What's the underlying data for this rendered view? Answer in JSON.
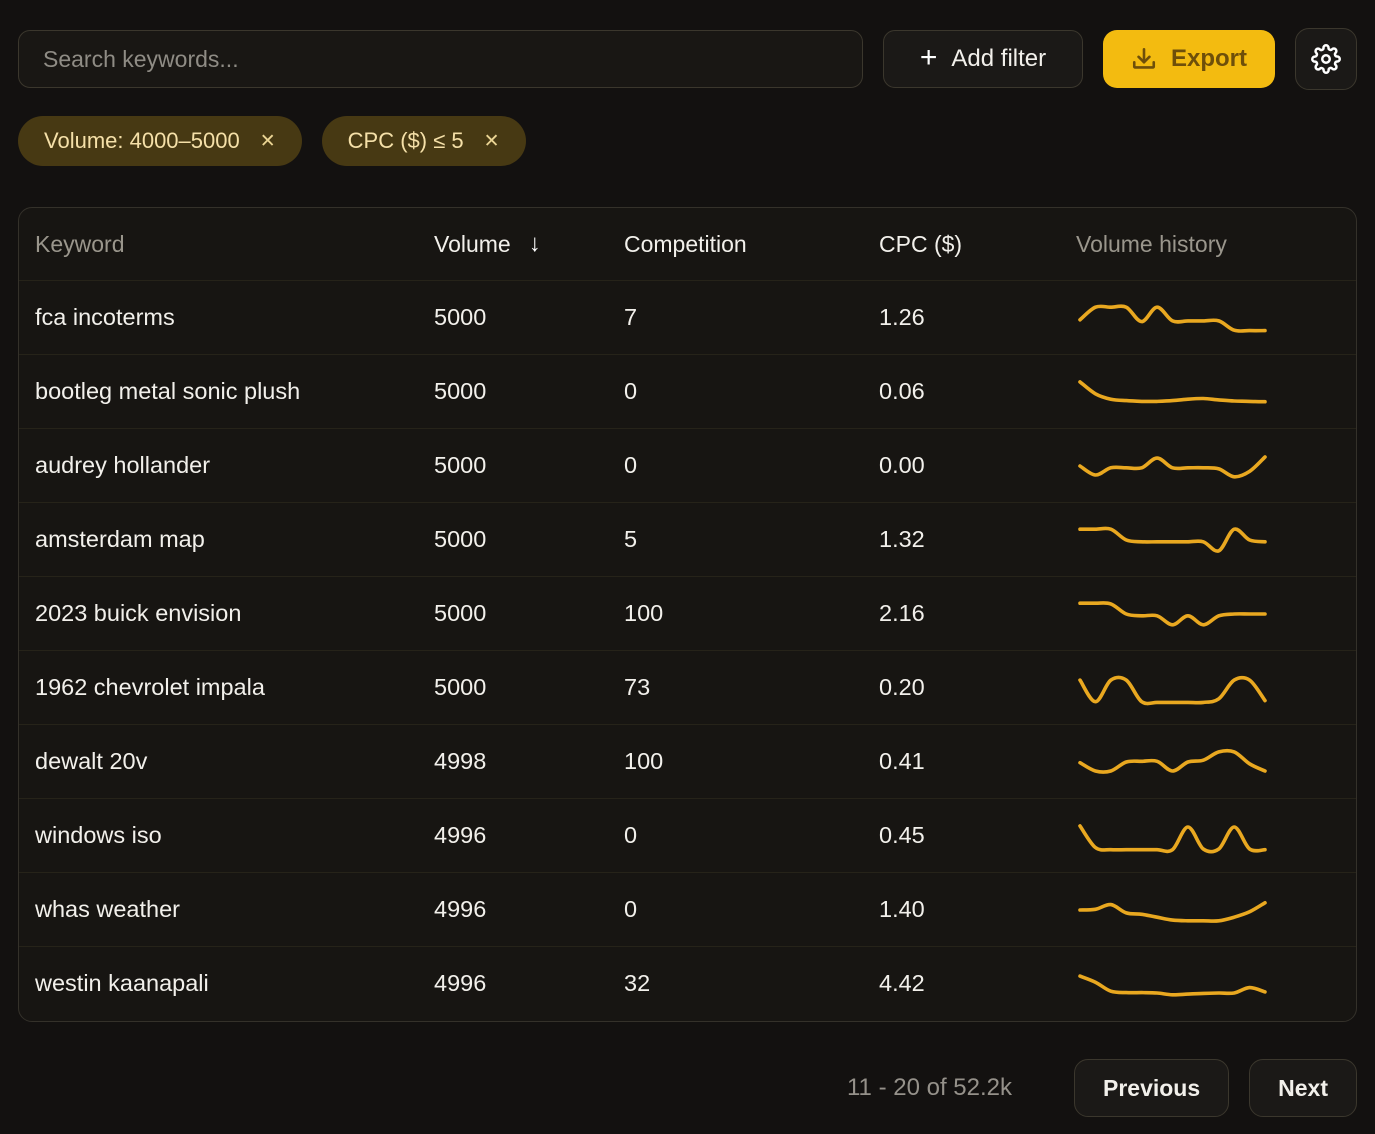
{
  "toolbar": {
    "search_placeholder": "Search keywords...",
    "add_filter_label": "Add filter",
    "export_label": "Export"
  },
  "filters": [
    {
      "label": "Volume: 4000–5000",
      "remove_symbol": "✕"
    },
    {
      "label": "CPC ($) ≤ 5",
      "remove_symbol": "✕"
    }
  ],
  "table": {
    "columns": [
      "Keyword",
      "Volume",
      "Competition",
      "CPC ($)",
      "Volume history"
    ],
    "sorted_column": "Volume",
    "sort_direction": "desc",
    "sort_arrow": "↓",
    "rows": [
      {
        "keyword": "fca incoterms",
        "volume": "5000",
        "competition": "7",
        "cpc": "1.26",
        "history": [
          0.45,
          0.8,
          0.8,
          0.8,
          0.4,
          0.8,
          0.42,
          0.42,
          0.42,
          0.42,
          0.16,
          0.15,
          0.15
        ]
      },
      {
        "keyword": "bootleg metal sonic plush",
        "volume": "5000",
        "competition": "0",
        "cpc": "0.06",
        "history": [
          0.78,
          0.45,
          0.3,
          0.26,
          0.24,
          0.24,
          0.26,
          0.3,
          0.32,
          0.28,
          0.25,
          0.24,
          0.23
        ]
      },
      {
        "keyword": "audrey hollander",
        "volume": "5000",
        "competition": "0",
        "cpc": "0.00",
        "history": [
          0.5,
          0.25,
          0.45,
          0.45,
          0.45,
          0.72,
          0.45,
          0.45,
          0.45,
          0.42,
          0.2,
          0.35,
          0.75
        ]
      },
      {
        "keyword": "amsterdam map",
        "volume": "5000",
        "competition": "5",
        "cpc": "1.32",
        "history": [
          0.8,
          0.8,
          0.8,
          0.5,
          0.45,
          0.45,
          0.45,
          0.45,
          0.45,
          0.2,
          0.8,
          0.5,
          0.45
        ]
      },
      {
        "keyword": "2023 buick envision",
        "volume": "5000",
        "competition": "100",
        "cpc": "2.16",
        "history": [
          0.8,
          0.8,
          0.78,
          0.5,
          0.45,
          0.45,
          0.2,
          0.45,
          0.2,
          0.45,
          0.5,
          0.5,
          0.5
        ]
      },
      {
        "keyword": "1962 chevrolet impala",
        "volume": "5000",
        "competition": "73",
        "cpc": "0.20",
        "history": [
          0.72,
          0.12,
          0.72,
          0.72,
          0.12,
          0.1,
          0.1,
          0.1,
          0.1,
          0.2,
          0.72,
          0.72,
          0.15
        ]
      },
      {
        "keyword": "dewalt 20v",
        "volume": "4998",
        "competition": "100",
        "cpc": "0.41",
        "history": [
          0.48,
          0.25,
          0.25,
          0.5,
          0.52,
          0.52,
          0.25,
          0.5,
          0.55,
          0.78,
          0.78,
          0.45,
          0.25
        ]
      },
      {
        "keyword": "windows iso",
        "volume": "4996",
        "competition": "0",
        "cpc": "0.45",
        "history": [
          0.78,
          0.18,
          0.12,
          0.12,
          0.12,
          0.12,
          0.12,
          0.75,
          0.14,
          0.14,
          0.75,
          0.14,
          0.12
        ]
      },
      {
        "keyword": "whas weather",
        "volume": "4996",
        "competition": "0",
        "cpc": "1.40",
        "history": [
          0.5,
          0.52,
          0.65,
          0.42,
          0.38,
          0.3,
          0.22,
          0.2,
          0.2,
          0.2,
          0.3,
          0.45,
          0.7
        ]
      },
      {
        "keyword": "westin kaanapali",
        "volume": "4996",
        "competition": "32",
        "cpc": "4.42",
        "history": [
          0.72,
          0.55,
          0.3,
          0.26,
          0.26,
          0.25,
          0.2,
          0.22,
          0.24,
          0.25,
          0.25,
          0.4,
          0.28
        ]
      }
    ]
  },
  "pagination": {
    "range_label": "11 - 20 of 52.2k",
    "previous_label": "Previous",
    "next_label": "Next"
  },
  "colors": {
    "accent": "#F3BB10",
    "sparkline": "#E9A820",
    "chip_bg": "#473913",
    "chip_text": "#F5E0A8"
  }
}
